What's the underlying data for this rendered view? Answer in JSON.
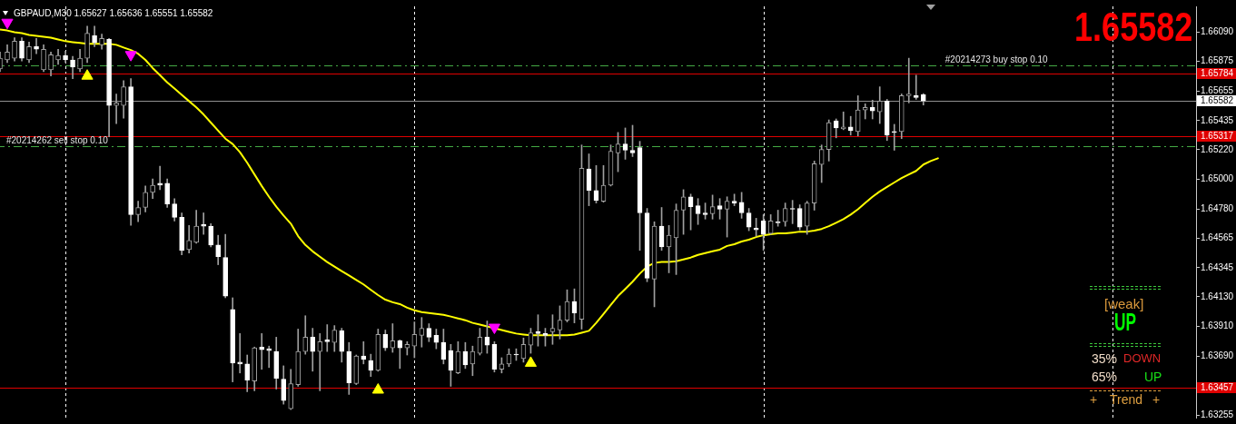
{
  "chart_data": {
    "type": "candlestick",
    "title": "GBPAUD,M30 1.65627 1.65636 1.65551 1.65582",
    "tick_labels": "y",
    "categories": [
      null,
      null,
      null,
      null,
      null,
      null,
      null,
      null,
      null,
      null,
      null,
      null,
      null,
      null,
      null,
      null,
      null,
      null,
      null,
      null,
      null,
      null,
      null,
      null,
      null,
      null,
      null,
      null,
      null,
      null,
      null,
      null,
      null,
      null,
      null,
      null,
      null,
      null,
      null,
      null,
      null,
      null,
      null,
      null,
      null,
      null,
      null,
      null,
      null,
      null,
      null,
      null,
      null,
      null,
      null,
      null,
      null,
      null,
      null,
      null,
      null,
      null,
      null,
      null,
      null,
      null,
      null,
      null,
      null,
      null,
      null,
      null,
      null,
      null,
      null,
      null,
      null,
      null,
      null,
      null,
      null,
      null,
      null,
      null,
      null,
      null,
      null,
      null,
      null,
      null,
      null,
      null,
      null,
      null,
      null,
      null,
      null,
      null,
      null,
      null,
      null,
      null,
      null,
      null,
      null,
      null,
      null,
      null,
      null,
      null,
      null,
      null,
      null,
      null,
      null,
      null,
      null,
      null,
      null,
      null,
      null,
      null,
      null,
      null,
      null,
      null,
      null,
      null,
      null,
      null,
      null,
      null,
      null,
      null,
      null,
      null,
      null,
      null,
      null,
      null,
      null,
      null,
      null,
      null,
      null,
      null,
      null,
      null,
      null,
      null,
      null,
      null,
      null,
      null,
      null,
      null,
      null,
      null,
      null,
      null,
      null,
      null,
      null,
      null,
      null
    ],
    "ohlc": [
      [
        1.65818,
        1.65944,
        1.65799,
        1.65898
      ],
      [
        1.65885,
        1.65997,
        1.65865,
        1.65944
      ],
      [
        1.65898,
        1.6605,
        1.65878,
        1.66024
      ],
      [
        1.66024,
        1.6605,
        1.65878,
        1.65898
      ],
      [
        1.65885,
        1.66017,
        1.65865,
        1.65984
      ],
      [
        1.65984,
        1.66044,
        1.65931,
        1.65964
      ],
      [
        1.65812,
        1.65997,
        1.65799,
        1.65964
      ],
      [
        1.65812,
        1.65944,
        1.65766,
        1.65924
      ],
      [
        1.65885,
        1.65964,
        1.65852,
        1.65918
      ],
      [
        1.65918,
        1.65951,
        1.65865,
        1.65885
      ],
      [
        1.65885,
        1.65911,
        1.65746,
        1.65832
      ],
      [
        1.65818,
        1.65964,
        1.65799,
        1.65898
      ],
      [
        1.65898,
        1.66136,
        1.65865,
        1.66083
      ],
      [
        1.66064,
        1.66136,
        1.65984,
        1.66011
      ],
      [
        1.65997,
        1.66077,
        1.65964,
        1.66044
      ],
      [
        1.66037,
        1.66044,
        1.65315,
        1.65547
      ],
      [
        1.65547,
        1.65633,
        1.65414,
        1.65567
      ],
      [
        1.65547,
        1.65732,
        1.65454,
        1.65686
      ],
      [
        1.65686,
        1.65746,
        1.64659,
        1.64739
      ],
      [
        1.64739,
        1.64838,
        1.64686,
        1.64792
      ],
      [
        1.64792,
        1.64951,
        1.64759,
        1.64904
      ],
      [
        1.64904,
        1.65004,
        1.64858,
        1.64957
      ],
      [
        1.64971,
        1.65097,
        1.64924,
        1.64957
      ],
      [
        1.64971,
        1.65004,
        1.64792,
        1.64818
      ],
      [
        1.64818,
        1.64858,
        1.64692,
        1.64719
      ],
      [
        1.64719,
        1.64752,
        1.64441,
        1.64474
      ],
      [
        1.6448,
        1.64659,
        1.64454,
        1.64547
      ],
      [
        1.64533,
        1.64772,
        1.64527,
        1.64653
      ],
      [
        1.64666,
        1.64752,
        1.64593,
        1.64653
      ],
      [
        1.64653,
        1.64672,
        1.645,
        1.64514
      ],
      [
        1.64514,
        1.64586,
        1.64368,
        1.64427
      ],
      [
        1.64421,
        1.64593,
        1.64123,
        1.64136
      ],
      [
        1.64037,
        1.64123,
        1.635,
        1.63639
      ],
      [
        1.63646,
        1.63858,
        1.63566,
        1.63633
      ],
      [
        1.63633,
        1.63699,
        1.63427,
        1.63513
      ],
      [
        1.63507,
        1.63758,
        1.63434,
        1.63752
      ],
      [
        1.63758,
        1.63858,
        1.63593,
        1.63739
      ],
      [
        1.63745,
        1.63765,
        1.63606,
        1.63732
      ],
      [
        1.63725,
        1.63831,
        1.63447,
        1.63527
      ],
      [
        1.6352,
        1.63619,
        1.63335,
        1.63361
      ],
      [
        1.63301,
        1.63593,
        1.63295,
        1.63487
      ],
      [
        1.6348,
        1.63891,
        1.63467,
        1.63725
      ],
      [
        1.63725,
        1.6399,
        1.63705,
        1.63831
      ],
      [
        1.63831,
        1.63897,
        1.63579,
        1.63725
      ],
      [
        1.63725,
        1.63858,
        1.63434,
        1.63798
      ],
      [
        1.63811,
        1.63924,
        1.63725,
        1.63798
      ],
      [
        1.63792,
        1.63917,
        1.63725,
        1.63884
      ],
      [
        1.63878,
        1.63897,
        1.63646,
        1.63725
      ],
      [
        1.63725,
        1.63792,
        1.63407,
        1.63493
      ],
      [
        1.63487,
        1.63699,
        1.6348,
        1.63692
      ],
      [
        1.63692,
        1.63798,
        1.63633,
        1.63666
      ],
      [
        1.63659,
        1.63705,
        1.6354,
        1.63586
      ],
      [
        1.63586,
        1.63891,
        1.63579,
        1.63851
      ],
      [
        1.63851,
        1.63884,
        1.63732,
        1.63752
      ],
      [
        1.63752,
        1.63931,
        1.63719,
        1.63805
      ],
      [
        1.63805,
        1.63811,
        1.63599,
        1.63752
      ],
      [
        1.63752,
        1.63798,
        1.63699,
        1.63778
      ],
      [
        1.63765,
        1.63944,
        1.63679,
        1.63851
      ],
      [
        1.63845,
        1.63977,
        1.63758,
        1.63897
      ],
      [
        1.63897,
        1.63931,
        1.63798,
        1.63831
      ],
      [
        1.63845,
        1.63891,
        1.63745,
        1.63792
      ],
      [
        1.63792,
        1.63891,
        1.63633,
        1.63666
      ],
      [
        1.63732,
        1.63778,
        1.63467,
        1.63586
      ],
      [
        1.63566,
        1.63798,
        1.6356,
        1.63725
      ],
      [
        1.63725,
        1.63792,
        1.63599,
        1.63626
      ],
      [
        1.63633,
        1.63765,
        1.63546,
        1.63725
      ],
      [
        1.63712,
        1.63897,
        1.63699,
        1.63831
      ],
      [
        1.63831,
        1.63951,
        1.63712,
        1.63772
      ],
      [
        1.63778,
        1.63798,
        1.63573,
        1.63593
      ],
      [
        1.63593,
        1.63679,
        1.63566,
        1.63633
      ],
      [
        1.63633,
        1.63745,
        1.63613,
        1.63705
      ],
      [
        1.63705,
        1.63745,
        1.63659,
        1.63699
      ],
      [
        1.63672,
        1.63825,
        1.63646,
        1.63778
      ],
      [
        1.63772,
        1.63897,
        1.63712,
        1.63864
      ],
      [
        1.63871,
        1.63997,
        1.63765,
        1.63858
      ],
      [
        1.63858,
        1.63897,
        1.63765,
        1.63845
      ],
      [
        1.63871,
        1.63997,
        1.63778,
        1.63897
      ],
      [
        1.63884,
        1.64063,
        1.63818,
        1.63957
      ],
      [
        1.63957,
        1.64182,
        1.63944,
        1.64096
      ],
      [
        1.64096,
        1.64189,
        1.63937,
        1.6401
      ],
      [
        1.63964,
        1.65255,
        1.63891,
        1.65083
      ],
      [
        1.65077,
        1.65189,
        1.64805,
        1.64918
      ],
      [
        1.64918,
        1.65103,
        1.64825,
        1.64845
      ],
      [
        1.64838,
        1.65103,
        1.64831,
        1.64957
      ],
      [
        1.64957,
        1.65255,
        1.64951,
        1.65209
      ],
      [
        1.65196,
        1.65348,
        1.65057,
        1.65262
      ],
      [
        1.65262,
        1.65381,
        1.65149,
        1.65216
      ],
      [
        1.65216,
        1.65401,
        1.65169,
        1.65196
      ],
      [
        1.65236,
        1.65282,
        1.64474,
        1.64752
      ],
      [
        1.64752,
        1.64785,
        1.64242,
        1.64268
      ],
      [
        1.64262,
        1.64686,
        1.64056,
        1.64653
      ],
      [
        1.64653,
        1.64792,
        1.64474,
        1.645
      ],
      [
        1.645,
        1.64659,
        1.64308,
        1.64586
      ],
      [
        1.64567,
        1.64818,
        1.64295,
        1.64772
      ],
      [
        1.64772,
        1.64924,
        1.64593,
        1.64871
      ],
      [
        1.64871,
        1.64891,
        1.64626,
        1.64798
      ],
      [
        1.64805,
        1.64858,
        1.64666,
        1.64745
      ],
      [
        1.64752,
        1.64825,
        1.64706,
        1.64739
      ],
      [
        1.64745,
        1.64884,
        1.64706,
        1.64798
      ],
      [
        1.64805,
        1.64858,
        1.64706,
        1.64779
      ],
      [
        1.64779,
        1.64871,
        1.64573,
        1.64838
      ],
      [
        1.64838,
        1.64891,
        1.64805,
        1.64825
      ],
      [
        1.64831,
        1.64904,
        1.64712,
        1.64752
      ],
      [
        1.64752,
        1.64785,
        1.6462,
        1.64646
      ],
      [
        1.64639,
        1.64712,
        1.6458,
        1.64626
      ],
      [
        1.64692,
        1.64739,
        1.64474,
        1.64593
      ],
      [
        1.646,
        1.64739,
        1.64593,
        1.64692
      ],
      [
        1.64686,
        1.64772,
        1.64653,
        1.64679
      ],
      [
        1.64686,
        1.64825,
        1.64653,
        1.64785
      ],
      [
        1.64785,
        1.64845,
        1.64672,
        1.64779
      ],
      [
        1.64785,
        1.64812,
        1.64626,
        1.64646
      ],
      [
        1.64653,
        1.64838,
        1.64593,
        1.64825
      ],
      [
        1.64825,
        1.65136,
        1.64772,
        1.65116
      ],
      [
        1.6511,
        1.65255,
        1.64977,
        1.65222
      ],
      [
        1.65222,
        1.65441,
        1.65136,
        1.65421
      ],
      [
        1.65434,
        1.65448,
        1.65308,
        1.65381
      ],
      [
        1.65375,
        1.655,
        1.65368,
        1.65388
      ],
      [
        1.65388,
        1.65467,
        1.65328,
        1.65361
      ],
      [
        1.65355,
        1.6562,
        1.65322,
        1.65514
      ],
      [
        1.65514,
        1.6556,
        1.65448,
        1.65534
      ],
      [
        1.65534,
        1.65587,
        1.65448,
        1.65507
      ],
      [
        1.655,
        1.65686,
        1.65414,
        1.6558
      ],
      [
        1.6558,
        1.65593,
        1.65288,
        1.65328
      ],
      [
        1.65355,
        1.65408,
        1.65216,
        1.65348
      ],
      [
        1.65355,
        1.65633,
        1.65302,
        1.6562
      ],
      [
        1.6562,
        1.65898,
        1.65567,
        1.65633
      ],
      [
        1.6562,
        1.65772,
        1.65593,
        1.65607
      ],
      [
        1.65627,
        1.65636,
        1.65551,
        1.65582
      ],
      null,
      null,
      null,
      null,
      null,
      null,
      null,
      null,
      null,
      null,
      null,
      null,
      null,
      null,
      null,
      null,
      null,
      null,
      null,
      null,
      null,
      null,
      null,
      null,
      null,
      null,
      null,
      null,
      null,
      null,
      null,
      null,
      null,
      null,
      null,
      null,
      null
    ],
    "series": [
      {
        "type": "line",
        "color": "#ffff00",
        "values": [
          1.6611,
          1.66103,
          1.6609,
          1.66083,
          1.6607,
          1.66064,
          1.66057,
          1.6605,
          1.66037,
          1.66024,
          1.66017,
          1.66011,
          1.66004,
          1.66004,
          1.66004,
          1.66004,
          1.65997,
          1.65977,
          1.65958,
          1.65931,
          1.65885,
          1.65825,
          1.65772,
          1.65719,
          1.65673,
          1.65626,
          1.6558,
          1.65534,
          1.65481,
          1.65421,
          1.65361,
          1.65302,
          1.65262,
          1.65202,
          1.65123,
          1.65037,
          1.64951,
          1.64871,
          1.64798,
          1.64732,
          1.64672,
          1.6458,
          1.64514,
          1.64467,
          1.64427,
          1.64388,
          1.64354,
          1.64321,
          1.64288,
          1.64255,
          1.64222,
          1.64182,
          1.64143,
          1.64109,
          1.6409,
          1.64076,
          1.6405,
          1.6403,
          1.64017,
          1.6401,
          1.64003,
          1.63997,
          1.63984,
          1.6397,
          1.63957,
          1.63937,
          1.63924,
          1.63911,
          1.63897,
          1.63884,
          1.63871,
          1.63858,
          1.63851,
          1.63845,
          1.63845,
          1.63845,
          1.63845,
          1.63845,
          1.63845,
          1.63851,
          1.63864,
          1.63878,
          1.63937,
          1.64003,
          1.6407,
          1.64136,
          1.64189,
          1.64242,
          1.64302,
          1.64354,
          1.64381,
          1.64388,
          1.64388,
          1.64394,
          1.64407,
          1.64421,
          1.64441,
          1.64454,
          1.64467,
          1.6448,
          1.64507,
          1.6452,
          1.6454,
          1.64553,
          1.64573,
          1.64586,
          1.64593,
          1.646,
          1.646,
          1.64606,
          1.64613,
          1.64613,
          1.6462,
          1.64633,
          1.64653,
          1.64679,
          1.64706,
          1.64739,
          1.64779,
          1.64825,
          1.64871,
          1.64911,
          1.64944,
          1.64977,
          1.6501,
          1.65037,
          1.65063,
          1.6511,
          1.65136,
          1.65156,
          null,
          null,
          null,
          null,
          null,
          null,
          null,
          null,
          null,
          null,
          null,
          null,
          null,
          null,
          null,
          null,
          null,
          null,
          null,
          null,
          null,
          null,
          null,
          null,
          null,
          null,
          null,
          null,
          null,
          null,
          null,
          null,
          null,
          null,
          null
        ]
      },
      {
        "type": "scatter",
        "color": "#ff00ff",
        "marker": "triangle",
        "values": [
          null,
          1.66163,
          null,
          null,
          null,
          null,
          null,
          null,
          null,
          null,
          null,
          null,
          null,
          null,
          null,
          null,
          null,
          null,
          1.65924,
          null,
          null,
          null,
          null,
          null,
          null,
          null,
          null,
          null,
          null,
          null,
          null,
          null,
          null,
          null,
          null,
          null,
          null,
          null,
          null,
          null,
          null,
          null,
          null,
          null,
          null,
          null,
          null,
          null,
          null,
          null,
          null,
          null,
          null,
          null,
          null,
          null,
          null,
          null,
          null,
          null,
          null,
          null,
          null,
          null,
          null,
          null,
          null,
          null,
          1.63904,
          null,
          null,
          null,
          null,
          null,
          null,
          null,
          null,
          null,
          null,
          null,
          null,
          null,
          null,
          null,
          null,
          null,
          null,
          null,
          null,
          null,
          null,
          null,
          null,
          null,
          null,
          null,
          null,
          null,
          null,
          null,
          null,
          null,
          null,
          null,
          null,
          null,
          null,
          null,
          null,
          null,
          null,
          null,
          null,
          null,
          null,
          null,
          null,
          null,
          null,
          null,
          null,
          null,
          null,
          null,
          null,
          null,
          null,
          null,
          null,
          null,
          null,
          null,
          null,
          null,
          null,
          null,
          null,
          null,
          null,
          null,
          null,
          null,
          null,
          null,
          null,
          null,
          null,
          null,
          null,
          null,
          null,
          null,
          null,
          null,
          null,
          null,
          null,
          null,
          null,
          null,
          null,
          null,
          null,
          null,
          null
        ]
      },
      {
        "type": "scatter",
        "color": "#ffff00",
        "marker": "triangle",
        "values": [
          null,
          null,
          null,
          null,
          null,
          null,
          null,
          null,
          null,
          null,
          null,
          null,
          1.65766,
          null,
          null,
          null,
          null,
          null,
          null,
          null,
          null,
          null,
          null,
          null,
          null,
          null,
          null,
          null,
          null,
          null,
          null,
          null,
          null,
          null,
          null,
          null,
          null,
          null,
          null,
          null,
          null,
          null,
          null,
          null,
          null,
          null,
          null,
          null,
          null,
          null,
          null,
          null,
          1.6344,
          null,
          null,
          null,
          null,
          null,
          null,
          null,
          null,
          null,
          null,
          null,
          null,
          null,
          null,
          null,
          null,
          null,
          null,
          null,
          null,
          1.63639,
          null,
          null,
          null,
          null,
          null,
          null,
          null,
          null,
          null,
          null,
          null,
          null,
          null,
          null,
          null,
          null,
          null,
          null,
          null,
          null,
          null,
          null,
          null,
          null,
          null,
          null,
          null,
          null,
          null,
          null,
          null,
          null,
          null,
          null,
          null,
          null,
          null,
          null,
          null,
          null,
          null,
          null,
          null,
          null,
          null,
          null,
          null,
          null,
          null,
          null,
          null,
          null,
          null,
          null,
          null,
          null,
          null,
          null,
          null,
          null,
          null,
          null,
          null,
          null,
          null,
          null,
          null,
          null,
          null,
          null,
          null,
          null,
          null,
          null,
          null,
          null,
          null,
          null,
          null,
          null,
          null,
          null,
          null,
          null,
          null,
          null,
          null,
          null,
          null,
          null,
          null
        ]
      }
    ],
    "ylim": [
      1.63235,
      1.66282
    ],
    "yticks": [
      {
        "value": 1.6609,
        "label": "1.66090"
      },
      1.65875,
      1.65655,
      1.65435,
      {
        "value": 1.6522,
        "label": "1.65220"
      },
      {
        "value": 1.65,
        "label": "1.65000"
      },
      {
        "value": 1.6478,
        "label": "1.64780"
      },
      1.64565,
      1.64345,
      {
        "value": 1.6413,
        "label": "1.64130"
      },
      {
        "value": 1.6391,
        "label": "1.63910"
      },
      {
        "value": 1.6369,
        "label": "1.63690"
      },
      1.63255
    ],
    "ref_lines": [
      {
        "axis": "y",
        "value": 1.65847,
        "label": "#20214273 buy stop 0.10",
        "color": "#44aa44",
        "line_style": "dashed"
      },
      {
        "axis": "y",
        "value": 1.65784,
        "label": "1.65784",
        "color": "#e00000"
      },
      {
        "axis": "y",
        "value": 1.65582,
        "label": "1.65582",
        "color": "#909090"
      },
      {
        "axis": "y",
        "value": 1.65317,
        "label": "1.65317",
        "color": "#e00000"
      },
      {
        "axis": "y",
        "value": 1.65247,
        "label": "#20214262 sell stop 0.10",
        "color": "#44aa44",
        "line_style": "dashed"
      },
      {
        "axis": "y",
        "value": 1.63457,
        "label": "1.63457",
        "color": "#e00000"
      }
    ],
    "annotations": [
      "1.65582",
      "[weak]",
      "UP",
      "35%",
      "DOWN",
      "65%",
      "UP",
      "+",
      "Trend",
      "+"
    ]
  }
}
